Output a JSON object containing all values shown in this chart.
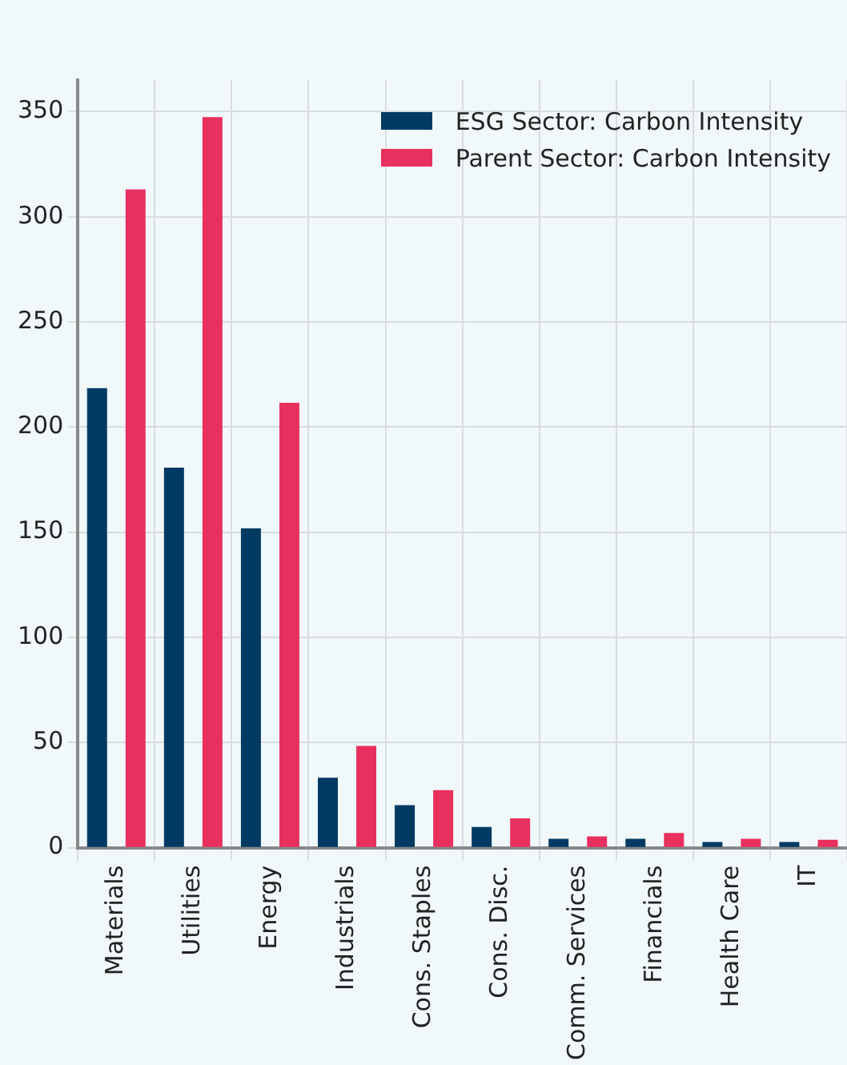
{
  "chart_data": {
    "type": "bar",
    "categories": [
      "Materials",
      "Utilities",
      "Energy",
      "Industrials",
      "Cons. Staples",
      "Cons. Disc.",
      "Comm. Services",
      "Financials",
      "Health Care",
      "IT"
    ],
    "series": [
      {
        "name": "ESG Sector: Carbon Intensity",
        "color": "#003a63",
        "values": [
          218.5,
          180.7,
          151.9,
          33.3,
          20.2,
          9.9,
          4.3,
          4.3,
          2.7,
          2.7
        ]
      },
      {
        "name": "Parent Sector: Carbon Intensity",
        "color": "#e8305e",
        "values": [
          313,
          347.4,
          211.6,
          48.4,
          27.4,
          14,
          5.4,
          7,
          4.3,
          3.8
        ]
      }
    ],
    "ylim": [
      0,
      365
    ],
    "yticks": [
      0,
      50,
      100,
      150,
      200,
      250,
      300,
      350
    ],
    "grid": true,
    "legend": "top right"
  }
}
